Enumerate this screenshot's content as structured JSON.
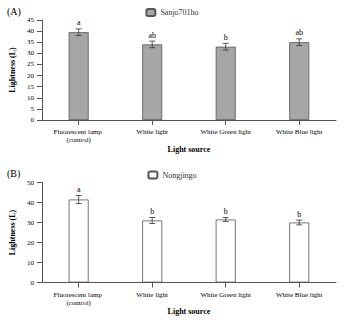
{
  "chart_data": [
    {
      "type": "bar",
      "title": "(A)",
      "x_label": "Light source",
      "y_label": "Lightness (L)",
      "categories": [
        "Fluorescent lamp (control)",
        "White light",
        "White Green light",
        "White Blue light"
      ],
      "series": [
        {
          "name": "Sanjo701ho",
          "color": "#a6a6a6",
          "values": [
            39.5,
            34,
            33,
            35
          ],
          "errors": [
            1.5,
            1.5,
            1.5,
            1.5
          ],
          "annotations": [
            "a",
            "ab",
            "b",
            "ab"
          ]
        }
      ],
      "ylim": [
        0,
        45
      ],
      "yticks": [
        0,
        5,
        10,
        15,
        20,
        25,
        30,
        35,
        40,
        45
      ],
      "grid": false,
      "legend": "top"
    },
    {
      "type": "bar",
      "title": "(B)",
      "x_label": "Light source",
      "y_label": "Lightness (L)",
      "categories": [
        "Fluorescent lamp (control)",
        "White light",
        "White Green light",
        "White Blue light"
      ],
      "series": [
        {
          "name": "Nongjingo",
          "color": "#ffffff",
          "values": [
            41.5,
            31,
            31.5,
            30
          ],
          "errors": [
            2,
            1.5,
            1,
            1.2
          ],
          "annotations": [
            "a",
            "b",
            "b",
            "b"
          ]
        }
      ],
      "ylim": [
        0,
        50
      ],
      "yticks": [
        0,
        10,
        20,
        30,
        40,
        50
      ],
      "grid": false,
      "legend": "top"
    }
  ]
}
